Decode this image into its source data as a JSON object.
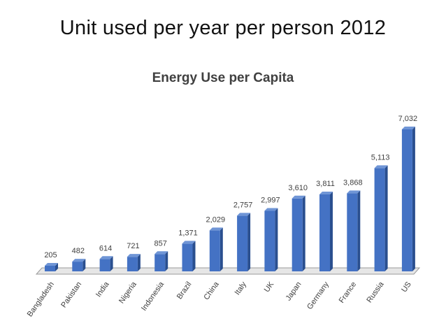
{
  "slide": {
    "title": "Unit used per year per person 2012"
  },
  "chart_data": {
    "type": "bar",
    "title": "Energy Use per Capita",
    "xlabel": "",
    "ylabel": "",
    "categories": [
      "Bangladesh",
      "Pakistan",
      "India",
      "Nigeria",
      "Indonesia",
      "Brazil",
      "China",
      "Italy",
      "UK",
      "Japan",
      "Germany",
      "France",
      "Russia",
      "US"
    ],
    "values": [
      205,
      482,
      614,
      721,
      857,
      1371,
      2029,
      2757,
      2997,
      3610,
      3811,
      3868,
      5113,
      7032
    ],
    "value_labels": [
      "205",
      "482",
      "614",
      "721",
      "857",
      "1,371",
      "2,029",
      "2,757",
      "2,997",
      "3,610",
      "3,811",
      "3,868",
      "5,113",
      "7,032"
    ],
    "ylim": [
      0,
      7032
    ],
    "grid": false,
    "legend": "none",
    "colors": {
      "bar_front": "#4472c4",
      "bar_side": "#2a4f8f",
      "bar_top": "#6f95d6",
      "floor": "#e6e6e6",
      "floor_edge": "#9a9a9a"
    }
  }
}
